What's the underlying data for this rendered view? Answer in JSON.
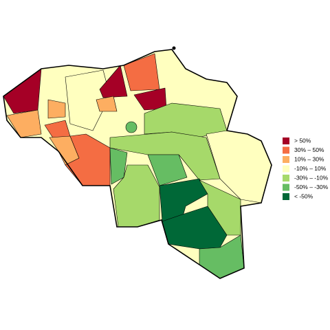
{
  "legend": {
    "entries": [
      {
        "label": "> 50%",
        "color": "#a50026"
      },
      {
        "label": "30% – 50%",
        "color": "#f46d43"
      },
      {
        "label": "10% – 30%",
        "color": "#fdae61"
      },
      {
        "label": "-10% – 10%",
        "color": "#ffffbf"
      },
      {
        "label": "-30% – -10%",
        "color": "#a6d96a"
      },
      {
        "label": "-50% – -30%",
        "color": "#66bd63"
      },
      {
        "label": "< -50%",
        "color": "#006837"
      }
    ]
  }
}
